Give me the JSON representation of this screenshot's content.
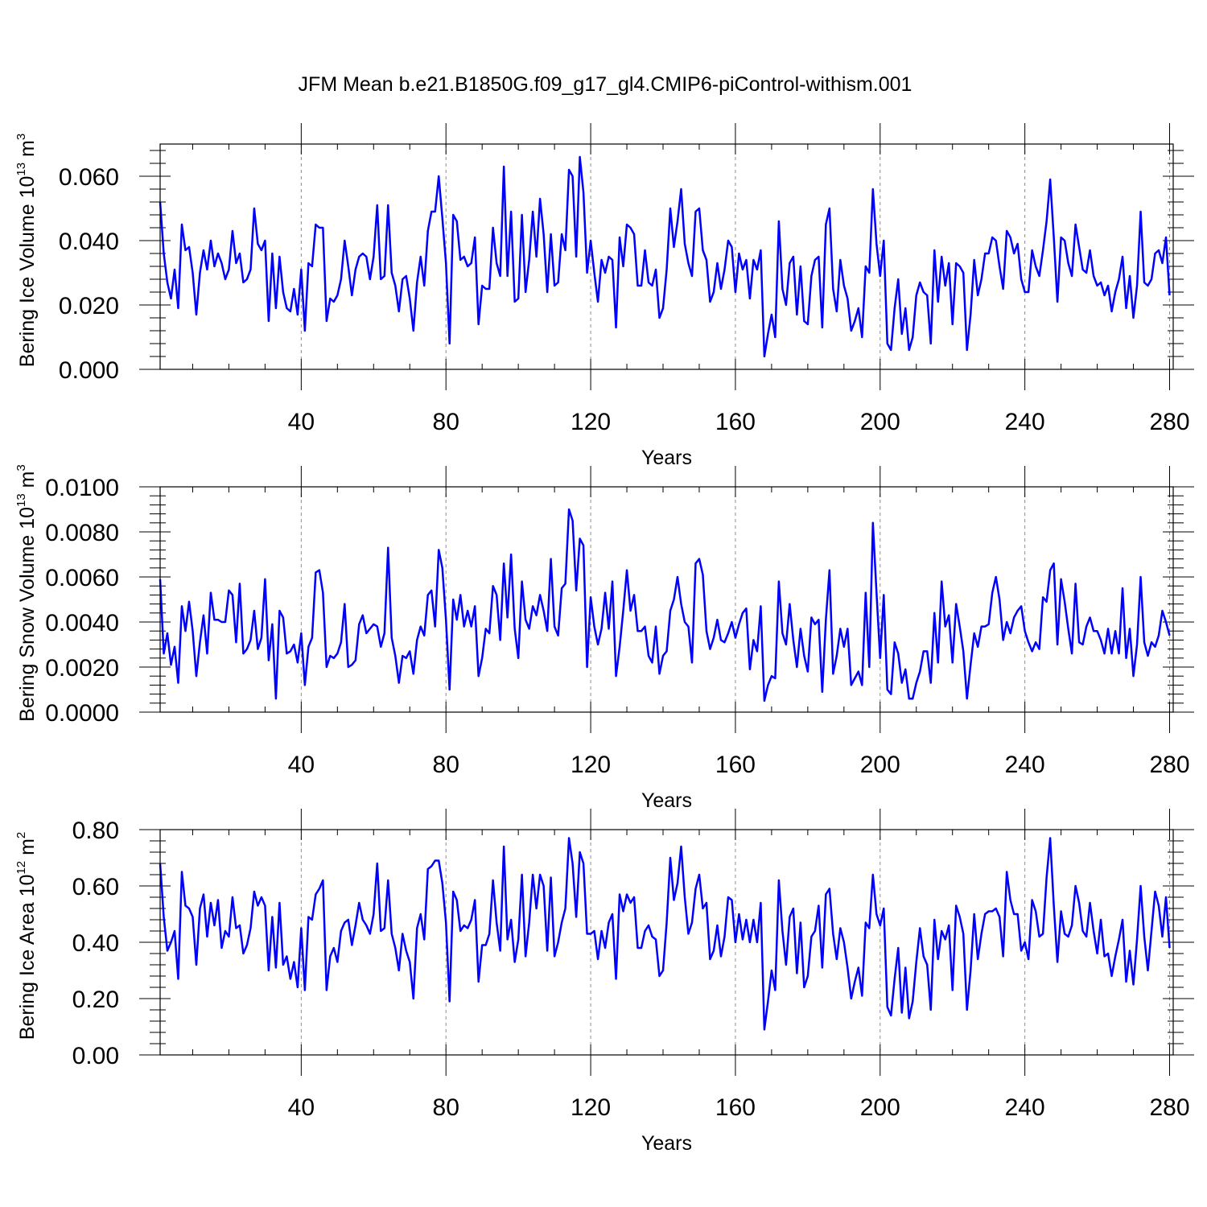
{
  "chart_data": {
    "type": "line",
    "title": "JFM Mean b.e21.B1850G.f09_g17_gl4.CMIP6-piControl-withism.001",
    "series_color": "#0000ff",
    "panels": [
      {
        "name": "ice-volume",
        "ylabel": "Bering Ice Volume",
        "unit_base": "10",
        "unit_exp": "13",
        "unit_name": "m",
        "unit_name_exp": "3",
        "xlabel": "Years",
        "xlim": [
          1,
          281
        ],
        "ylim": [
          0.0,
          0.07
        ],
        "xticks": [
          40,
          80,
          120,
          160,
          200,
          240,
          280
        ],
        "xtick_labels": [
          "40",
          "80",
          "120",
          "160",
          "200",
          "240",
          "280"
        ],
        "yticks": [
          0.0,
          0.02,
          0.04,
          0.06
        ],
        "ytick_labels": [
          "0.000",
          "0.020",
          "0.040",
          "0.060"
        ],
        "values": [
          0.052,
          0.036,
          0.027,
          0.022,
          0.031,
          0.019,
          0.045,
          0.037,
          0.038,
          0.03,
          0.017,
          0.03,
          0.037,
          0.031,
          0.04,
          0.032,
          0.036,
          0.033,
          0.028,
          0.031,
          0.043,
          0.033,
          0.036,
          0.027,
          0.028,
          0.031,
          0.05,
          0.039,
          0.037,
          0.04,
          0.015,
          0.036,
          0.019,
          0.035,
          0.024,
          0.019,
          0.018,
          0.025,
          0.017,
          0.031,
          0.012,
          0.033,
          0.032,
          0.045,
          0.044,
          0.044,
          0.015,
          0.022,
          0.021,
          0.023,
          0.028,
          0.04,
          0.032,
          0.023,
          0.031,
          0.035,
          0.036,
          0.035,
          0.028,
          0.035,
          0.051,
          0.028,
          0.029,
          0.051,
          0.03,
          0.026,
          0.018,
          0.028,
          0.029,
          0.022,
          0.012,
          0.027,
          0.035,
          0.026,
          0.043,
          0.049,
          0.049,
          0.06,
          0.047,
          0.033,
          0.008,
          0.048,
          0.046,
          0.034,
          0.035,
          0.032,
          0.033,
          0.041,
          0.014,
          0.026,
          0.025,
          0.025,
          0.044,
          0.033,
          0.029,
          0.063,
          0.029,
          0.049,
          0.021,
          0.022,
          0.048,
          0.024,
          0.034,
          0.049,
          0.035,
          0.053,
          0.042,
          0.024,
          0.042,
          0.026,
          0.027,
          0.042,
          0.037,
          0.062,
          0.06,
          0.035,
          0.066,
          0.055,
          0.03,
          0.04,
          0.03,
          0.021,
          0.034,
          0.03,
          0.035,
          0.034,
          0.013,
          0.041,
          0.032,
          0.045,
          0.044,
          0.042,
          0.026,
          0.026,
          0.037,
          0.027,
          0.026,
          0.031,
          0.016,
          0.019,
          0.031,
          0.05,
          0.038,
          0.046,
          0.056,
          0.039,
          0.033,
          0.029,
          0.049,
          0.05,
          0.037,
          0.034,
          0.021,
          0.024,
          0.033,
          0.025,
          0.031,
          0.04,
          0.038,
          0.024,
          0.036,
          0.031,
          0.034,
          0.022,
          0.034,
          0.031,
          0.037,
          0.004,
          0.011,
          0.017,
          0.01,
          0.046,
          0.025,
          0.02,
          0.033,
          0.035,
          0.017,
          0.032,
          0.015,
          0.014,
          0.029,
          0.034,
          0.035,
          0.013,
          0.045,
          0.05,
          0.025,
          0.018,
          0.034,
          0.026,
          0.022,
          0.012,
          0.015,
          0.019,
          0.01,
          0.032,
          0.03,
          0.056,
          0.039,
          0.029,
          0.04,
          0.008,
          0.006,
          0.019,
          0.028,
          0.011,
          0.019,
          0.006,
          0.01,
          0.023,
          0.027,
          0.024,
          0.023,
          0.008,
          0.037,
          0.021,
          0.035,
          0.026,
          0.033,
          0.014,
          0.033,
          0.032,
          0.03,
          0.006,
          0.017,
          0.034,
          0.023,
          0.028,
          0.036,
          0.036,
          0.041,
          0.04,
          0.032,
          0.025,
          0.043,
          0.041,
          0.036,
          0.039,
          0.028,
          0.024,
          0.024,
          0.037,
          0.032,
          0.029,
          0.037,
          0.046,
          0.059,
          0.041,
          0.021,
          0.041,
          0.04,
          0.033,
          0.029,
          0.045,
          0.038,
          0.031,
          0.03,
          0.037,
          0.029,
          0.026,
          0.027,
          0.023,
          0.026,
          0.018,
          0.024,
          0.028,
          0.035,
          0.019,
          0.029,
          0.016,
          0.026,
          0.049,
          0.027,
          0.026,
          0.028,
          0.036,
          0.037,
          0.033,
          0.041,
          0.023
        ]
      },
      {
        "name": "snow-volume",
        "ylabel": "Bering Snow Volume",
        "unit_base": "10",
        "unit_exp": "13",
        "unit_name": "m",
        "unit_name_exp": "3",
        "xlabel": "Years",
        "xlim": [
          1,
          281
        ],
        "ylim": [
          0.0,
          0.01
        ],
        "xticks": [
          40,
          80,
          120,
          160,
          200,
          240,
          280
        ],
        "xtick_labels": [
          "40",
          "80",
          "120",
          "160",
          "200",
          "240",
          "280"
        ],
        "yticks": [
          0.0,
          0.002,
          0.004,
          0.006,
          0.008,
          0.01
        ],
        "ytick_labels": [
          "0.0000",
          "0.0020",
          "0.0040",
          "0.0060",
          "0.0080",
          "0.0100"
        ],
        "values": [
          0.0059,
          0.0026,
          0.0035,
          0.0021,
          0.0029,
          0.0013,
          0.0047,
          0.0036,
          0.0049,
          0.0036,
          0.0016,
          0.0031,
          0.0043,
          0.0026,
          0.0053,
          0.0041,
          0.0041,
          0.004,
          0.004,
          0.0054,
          0.0052,
          0.0031,
          0.0057,
          0.0026,
          0.0028,
          0.0032,
          0.0045,
          0.0028,
          0.0033,
          0.0059,
          0.0023,
          0.0039,
          0.0006,
          0.0045,
          0.0042,
          0.0026,
          0.0027,
          0.003,
          0.0022,
          0.0035,
          0.0012,
          0.0029,
          0.0033,
          0.0062,
          0.0063,
          0.0053,
          0.002,
          0.0025,
          0.0024,
          0.0026,
          0.0031,
          0.0048,
          0.002,
          0.0021,
          0.0023,
          0.0039,
          0.0043,
          0.0035,
          0.0037,
          0.0039,
          0.0038,
          0.0029,
          0.0035,
          0.0073,
          0.0033,
          0.0025,
          0.0013,
          0.0025,
          0.0024,
          0.0027,
          0.0017,
          0.0032,
          0.0038,
          0.0034,
          0.0052,
          0.0054,
          0.0038,
          0.0072,
          0.0064,
          0.0041,
          0.001,
          0.005,
          0.0041,
          0.0052,
          0.0038,
          0.0045,
          0.0038,
          0.0047,
          0.0016,
          0.0024,
          0.0037,
          0.0035,
          0.0056,
          0.0052,
          0.0032,
          0.0066,
          0.0042,
          0.007,
          0.0037,
          0.0024,
          0.0058,
          0.0041,
          0.0037,
          0.0047,
          0.0043,
          0.0052,
          0.0045,
          0.0036,
          0.0068,
          0.0038,
          0.0034,
          0.0055,
          0.0057,
          0.009,
          0.0085,
          0.0054,
          0.0077,
          0.0074,
          0.002,
          0.0051,
          0.0038,
          0.003,
          0.0037,
          0.0053,
          0.0037,
          0.0058,
          0.0016,
          0.0029,
          0.0045,
          0.0063,
          0.0045,
          0.0052,
          0.0036,
          0.0036,
          0.0038,
          0.0025,
          0.0022,
          0.0038,
          0.0017,
          0.0025,
          0.0027,
          0.0045,
          0.005,
          0.006,
          0.0048,
          0.004,
          0.0038,
          0.0022,
          0.0066,
          0.0068,
          0.0061,
          0.0036,
          0.0028,
          0.0033,
          0.0041,
          0.0032,
          0.0031,
          0.0035,
          0.004,
          0.0033,
          0.0039,
          0.0044,
          0.0046,
          0.0019,
          0.0032,
          0.0027,
          0.0047,
          0.0005,
          0.0012,
          0.0016,
          0.0015,
          0.0058,
          0.0035,
          0.003,
          0.0048,
          0.0032,
          0.002,
          0.0037,
          0.0025,
          0.0018,
          0.0042,
          0.0039,
          0.0041,
          0.0009,
          0.0041,
          0.0063,
          0.0017,
          0.0025,
          0.0037,
          0.0029,
          0.0037,
          0.0012,
          0.0015,
          0.0018,
          0.0012,
          0.0053,
          0.002,
          0.0084,
          0.0053,
          0.0024,
          0.0052,
          0.001,
          0.0008,
          0.0031,
          0.0026,
          0.0013,
          0.0019,
          0.0006,
          0.0006,
          0.0013,
          0.0018,
          0.0027,
          0.0027,
          0.0013,
          0.0044,
          0.0022,
          0.0058,
          0.0038,
          0.0043,
          0.0022,
          0.0048,
          0.0038,
          0.0027,
          0.0006,
          0.0021,
          0.0035,
          0.0029,
          0.0038,
          0.0038,
          0.0039,
          0.0053,
          0.006,
          0.005,
          0.0032,
          0.004,
          0.0035,
          0.0042,
          0.0045,
          0.0047,
          0.0036,
          0.0031,
          0.0027,
          0.0031,
          0.0028,
          0.0051,
          0.0049,
          0.0063,
          0.0066,
          0.003,
          0.0059,
          0.0049,
          0.0037,
          0.0026,
          0.0057,
          0.0031,
          0.003,
          0.0038,
          0.0042,
          0.0036,
          0.0036,
          0.0032,
          0.0026,
          0.0037,
          0.0026,
          0.0036,
          0.0026,
          0.0055,
          0.0024,
          0.0037,
          0.0016,
          0.003,
          0.006,
          0.0031,
          0.0025,
          0.0031,
          0.0029,
          0.0034,
          0.0045,
          0.004,
          0.0034
        ]
      },
      {
        "name": "ice-area",
        "ylabel": "Bering Ice Area",
        "unit_base": "10",
        "unit_exp": "12",
        "unit_name": "m",
        "unit_name_exp": "2",
        "xlabel": "Years",
        "xlim": [
          1,
          281
        ],
        "ylim": [
          0.0,
          0.8
        ],
        "xticks": [
          40,
          80,
          120,
          160,
          200,
          240,
          280
        ],
        "xtick_labels": [
          "40",
          "80",
          "120",
          "160",
          "200",
          "240",
          "280"
        ],
        "yticks": [
          0.0,
          0.2,
          0.4,
          0.6,
          0.8
        ],
        "ytick_labels": [
          "0.00",
          "0.20",
          "0.40",
          "0.60",
          "0.80"
        ],
        "values": [
          0.68,
          0.49,
          0.37,
          0.4,
          0.44,
          0.27,
          0.65,
          0.53,
          0.52,
          0.49,
          0.32,
          0.52,
          0.57,
          0.42,
          0.54,
          0.46,
          0.55,
          0.38,
          0.44,
          0.42,
          0.56,
          0.45,
          0.46,
          0.36,
          0.39,
          0.45,
          0.58,
          0.53,
          0.56,
          0.53,
          0.3,
          0.49,
          0.31,
          0.54,
          0.32,
          0.35,
          0.27,
          0.33,
          0.24,
          0.45,
          0.23,
          0.49,
          0.48,
          0.57,
          0.59,
          0.62,
          0.23,
          0.35,
          0.38,
          0.33,
          0.44,
          0.47,
          0.48,
          0.39,
          0.46,
          0.54,
          0.48,
          0.46,
          0.43,
          0.5,
          0.68,
          0.44,
          0.45,
          0.62,
          0.43,
          0.38,
          0.3,
          0.43,
          0.37,
          0.33,
          0.2,
          0.45,
          0.5,
          0.41,
          0.66,
          0.67,
          0.69,
          0.69,
          0.61,
          0.47,
          0.19,
          0.58,
          0.55,
          0.44,
          0.46,
          0.45,
          0.48,
          0.55,
          0.26,
          0.39,
          0.39,
          0.43,
          0.62,
          0.47,
          0.37,
          0.74,
          0.41,
          0.48,
          0.33,
          0.41,
          0.64,
          0.35,
          0.47,
          0.64,
          0.52,
          0.64,
          0.6,
          0.37,
          0.63,
          0.35,
          0.4,
          0.47,
          0.52,
          0.77,
          0.68,
          0.49,
          0.72,
          0.68,
          0.43,
          0.43,
          0.44,
          0.34,
          0.44,
          0.38,
          0.47,
          0.5,
          0.27,
          0.57,
          0.51,
          0.57,
          0.54,
          0.56,
          0.38,
          0.38,
          0.44,
          0.46,
          0.42,
          0.41,
          0.28,
          0.3,
          0.47,
          0.7,
          0.55,
          0.61,
          0.74,
          0.56,
          0.43,
          0.47,
          0.59,
          0.64,
          0.52,
          0.54,
          0.34,
          0.37,
          0.46,
          0.35,
          0.42,
          0.56,
          0.55,
          0.4,
          0.5,
          0.41,
          0.48,
          0.4,
          0.48,
          0.4,
          0.54,
          0.09,
          0.19,
          0.3,
          0.23,
          0.62,
          0.44,
          0.32,
          0.49,
          0.52,
          0.29,
          0.47,
          0.24,
          0.28,
          0.42,
          0.44,
          0.53,
          0.31,
          0.57,
          0.59,
          0.43,
          0.34,
          0.45,
          0.4,
          0.31,
          0.2,
          0.26,
          0.31,
          0.21,
          0.47,
          0.45,
          0.64,
          0.5,
          0.46,
          0.52,
          0.17,
          0.14,
          0.27,
          0.38,
          0.15,
          0.31,
          0.13,
          0.19,
          0.33,
          0.45,
          0.35,
          0.32,
          0.16,
          0.48,
          0.34,
          0.44,
          0.41,
          0.46,
          0.23,
          0.53,
          0.49,
          0.43,
          0.16,
          0.3,
          0.5,
          0.34,
          0.43,
          0.5,
          0.51,
          0.51,
          0.52,
          0.49,
          0.35,
          0.65,
          0.55,
          0.5,
          0.5,
          0.37,
          0.4,
          0.34,
          0.55,
          0.51,
          0.42,
          0.43,
          0.63,
          0.77,
          0.53,
          0.33,
          0.51,
          0.43,
          0.42,
          0.46,
          0.6,
          0.54,
          0.44,
          0.42,
          0.54,
          0.44,
          0.36,
          0.48,
          0.35,
          0.36,
          0.28,
          0.35,
          0.41,
          0.48,
          0.26,
          0.37,
          0.25,
          0.41,
          0.6,
          0.42,
          0.3,
          0.44,
          0.58,
          0.53,
          0.42,
          0.56,
          0.38
        ]
      }
    ]
  }
}
